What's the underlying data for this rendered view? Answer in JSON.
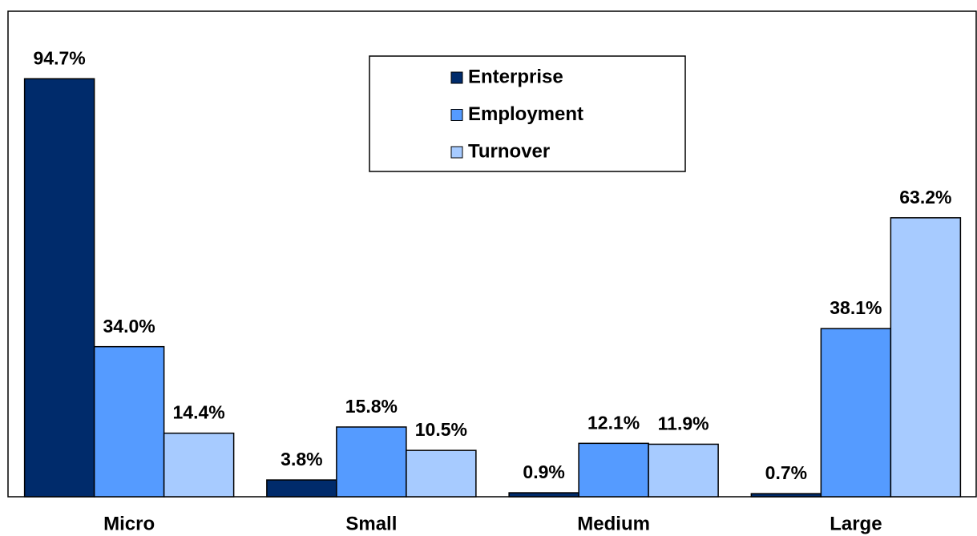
{
  "chart_data": {
    "type": "bar",
    "categories": [
      "Micro",
      "Small",
      "Medium",
      "Large"
    ],
    "series": [
      {
        "name": "Enterprise",
        "color": "#002b6b",
        "values": [
          94.7,
          3.8,
          0.9,
          0.7
        ],
        "value_labels": [
          "94.7%",
          "3.8%",
          "0.9%",
          "0.7%"
        ]
      },
      {
        "name": "Employment",
        "color": "#559bff",
        "values": [
          34.0,
          15.8,
          12.1,
          38.1
        ],
        "value_labels": [
          "34.0%",
          "15.8%",
          "12.1%",
          "38.1%"
        ]
      },
      {
        "name": "Turnover",
        "color": "#a7cbff",
        "values": [
          14.4,
          10.5,
          11.9,
          63.2
        ],
        "value_labels": [
          "14.4%",
          "10.5%",
          "11.9%",
          "63.2%"
        ]
      }
    ],
    "ylim": [
      0,
      110
    ],
    "legend": "top-center"
  }
}
